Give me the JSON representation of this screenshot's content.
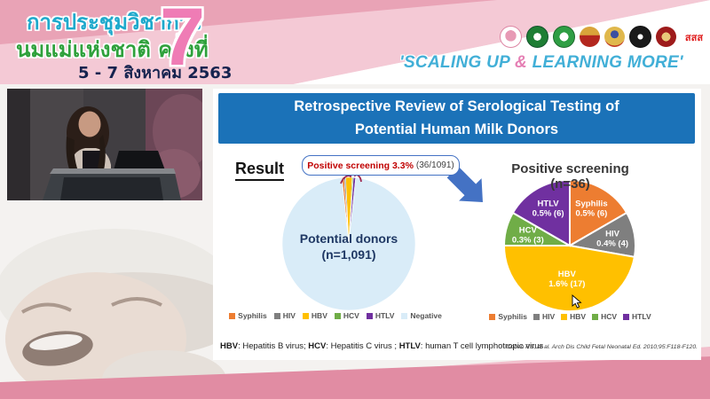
{
  "banner": {
    "title_line1": "การประชุมวิชาการ",
    "title_line2": "นมแม่แห่งชาติ ครั้งที่",
    "edition_number": "7",
    "dates": "5 - 7 สิงหาคม 2563",
    "slogan_open": "'SCALING UP ",
    "slogan_amp": "&",
    "slogan_close": " LEARNING MORE'",
    "sss_logo_text": "สสส",
    "logos": [
      "mother-and-child-emblem",
      "ministry-of-public-health-seal",
      "department-of-health-seal",
      "university-crest",
      "royal-emblem",
      "university-round-seal",
      "college-crest",
      "thai-health-promotion-foundation"
    ]
  },
  "slide": {
    "title_line1": "Retrospective Review of Serological Testing of",
    "title_line2": "Potential Human Milk Donors",
    "result_label": "Result",
    "callout_bold": "Positive screening 3.3%",
    "callout_detail": "(36/1091)",
    "footnote": {
      "abbr1": "HBV",
      "text1": ": Hepatitis B virus; ",
      "abbr2": "HCV",
      "text2": ": Hepatitis C virus ; ",
      "abbr3": "HTLV",
      "text3": ": human T cell lymphotropic virus"
    },
    "citation": "Cohen RS, et al. Arch Dis Child Fetal Neonatal Ed. 2010;95:F118-F120."
  },
  "chart_data": [
    {
      "type": "pie",
      "title_line1": "Potential donors",
      "title_line2": "(n=1,091)",
      "labels": [
        "Syphilis",
        "HIV",
        "HBV",
        "HCV",
        "HTLV",
        "Negative"
      ],
      "values": [
        6,
        4,
        17,
        3,
        6,
        1055
      ],
      "colors": [
        "#ED7D31",
        "#7F7F7F",
        "#FFC000",
        "#70AD47",
        "#7030A0",
        "#D9ECF8"
      ],
      "start_angle_deg": -5.94,
      "stroke_width": 0.6,
      "legend_position": "bottom",
      "annotation": "Positive screening 3.3% (36/1091)"
    },
    {
      "type": "pie",
      "title": "Positive screening (n=36)",
      "labels": [
        "Syphilis",
        "HIV",
        "HBV",
        "HCV",
        "HTLV"
      ],
      "values": [
        6,
        4,
        17,
        3,
        6
      ],
      "percent_labels": [
        "0.5% (6)",
        "0.4% (4)",
        "1.6% (17)",
        "0.3% (3)",
        "0.5% (6)"
      ],
      "colors": [
        "#ED7D31",
        "#7F7F7F",
        "#FFC000",
        "#70AD47",
        "#7030A0"
      ],
      "start_angle_deg": 0,
      "stroke_width": 2,
      "legend_position": "bottom"
    }
  ],
  "colors": {
    "title_bar_blue": "#1B72B8",
    "callout_border_blue": "#4472C4",
    "callout_red": "#C00000",
    "arrow_blue": "#4472C4",
    "banner_pink": "#E9A3B6",
    "footer_band_pink": "#E18CA3"
  }
}
